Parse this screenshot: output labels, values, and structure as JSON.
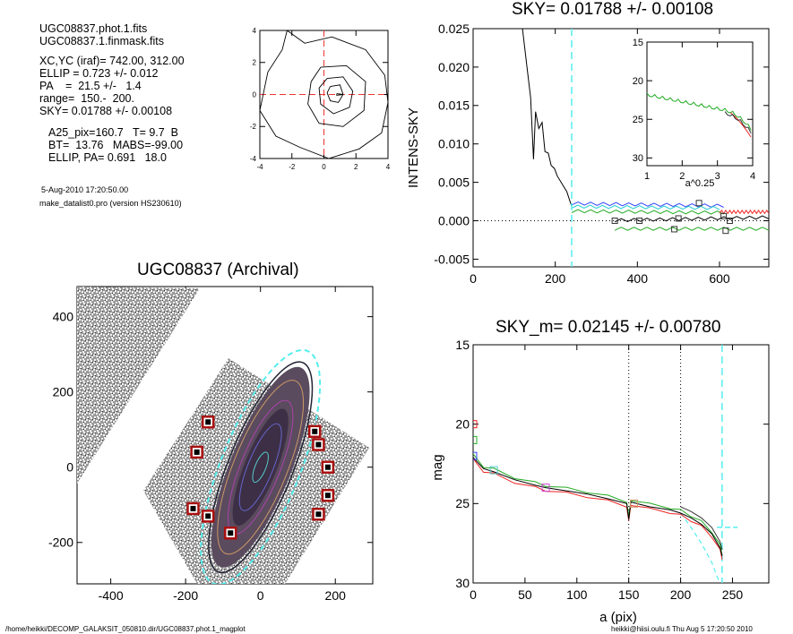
{
  "header": {
    "lines": [
      "UGC08837.phot.1.fits",
      "UGC08837.1.finmask.fits",
      "XC,YC (iraf)=   742.00, 312.00",
      "ELLIP = 0.723 +/- 0.012",
      "PA    =  21.5 +/-   1.4",
      "range=  150.-  200.",
      "SKY= 0.01788 +/- 0.00108",
      "A25_pix=160.7   T= 9.7  B",
      "BT=  13.76   MABS=-99.00",
      "ELLIP, PA= 0.691   18.0",
      "5-Aug-2010 17:20:50.00",
      "make_datalist0.pro (version HS230610)"
    ]
  },
  "footer": {
    "left": "/home/heikki/DECOMP_GALAKSIT_050810.dir/UGC08837.phot.1_magplot",
    "right": "heikki@hiisi.oulu.fi  Thu Aug  5 17:20:50 2010"
  },
  "chart_data": [
    {
      "id": "contour",
      "type": "contour",
      "xlim": [
        -4,
        4
      ],
      "ylim": [
        -4,
        4
      ],
      "xticks": [
        "-4",
        "-2",
        "0",
        "2",
        "4"
      ],
      "yticks": [
        "4",
        "2",
        "0",
        "-2",
        "-4"
      ]
    },
    {
      "id": "sky",
      "type": "line",
      "title": "SKY= 0.01788 +/- 0.00108",
      "ylabel": "INTENS-SKY",
      "xlim": [
        0,
        720
      ],
      "ylim": [
        -0.006,
        0.025
      ],
      "xticks": [
        "0",
        "200",
        "400",
        "600"
      ],
      "yticks": [
        "0.025",
        "0.020",
        "0.015",
        "0.010",
        "0.005",
        "0.000",
        "-0.005"
      ],
      "marker_x": 240,
      "profile": [
        [
          118,
          0.026
        ],
        [
          130,
          0.0205
        ],
        [
          140,
          0.016
        ],
        [
          147,
          0.008
        ],
        [
          152,
          0.0142
        ],
        [
          160,
          0.012
        ],
        [
          168,
          0.0128
        ],
        [
          175,
          0.009
        ],
        [
          183,
          0.0088
        ],
        [
          190,
          0.0072
        ],
        [
          198,
          0.0068
        ],
        [
          205,
          0.0058
        ],
        [
          212,
          0.0052
        ],
        [
          220,
          0.0045
        ],
        [
          228,
          0.0038
        ],
        [
          236,
          0.0025
        ],
        [
          240,
          0.0019
        ]
      ],
      "segments": [
        {
          "name": "blue",
          "color": "#3344ff",
          "x": [
            240,
            610
          ],
          "y": [
            0.0022,
            0.0019
          ]
        },
        {
          "name": "cyan",
          "color": "#22cccc",
          "x": [
            240,
            600
          ],
          "y": [
            0.0018,
            0.0016
          ]
        },
        {
          "name": "green",
          "color": "#22aa22",
          "x": [
            240,
            610
          ],
          "y": [
            0.0012,
            0.001
          ]
        },
        {
          "name": "red",
          "color": "#ee2222",
          "x": [
            600,
            720
          ],
          "y": [
            0.0011,
            0.0011
          ]
        },
        {
          "name": "black",
          "color": "#000000",
          "x": [
            345,
            720
          ],
          "y": [
            0.0,
            0.0004
          ]
        },
        {
          "name": "green2",
          "color": "#22aa22",
          "x": [
            345,
            720
          ],
          "y": [
            -0.0011,
            -0.0011
          ]
        }
      ],
      "squares": [
        [
          345,
          0.0
        ],
        [
          405,
          0.0
        ],
        [
          500,
          0.0003
        ],
        [
          610,
          0.0006
        ],
        [
          625,
          0.0
        ],
        [
          490,
          -0.0011
        ],
        [
          615,
          -0.0013
        ],
        [
          550,
          0.0023
        ]
      ],
      "inset": {
        "xlabel": "a^0.25",
        "xlim": [
          1,
          4
        ],
        "ylim": [
          31,
          15
        ],
        "xticks": [
          "1",
          "2",
          "3",
          "4"
        ],
        "yticks": [
          "15",
          "20",
          "25",
          "30"
        ]
      }
    },
    {
      "id": "image",
      "type": "image",
      "title": "UGC08837 (Archival)",
      "xlim": [
        -490,
        300
      ],
      "ylim": [
        -310,
        480
      ],
      "xticks": [
        "-400",
        "-200",
        "0",
        "200"
      ],
      "yticks": [
        "400",
        "200",
        "0",
        "-200"
      ]
    },
    {
      "id": "mag",
      "type": "line",
      "title": "SKY_m=  0.02145 +/- 0.00780",
      "xlabel": "a (pix)",
      "ylabel": "mag",
      "xlim": [
        0,
        285
      ],
      "ylim": [
        30,
        15
      ],
      "xticks": [
        "0",
        "50",
        "100",
        "150",
        "200",
        "250"
      ],
      "yticks": [
        "15",
        "20",
        "25",
        "30"
      ],
      "vlines": [
        150,
        200
      ],
      "marker_x": 240,
      "profile": [
        [
          0,
          22.1
        ],
        [
          10,
          22.8
        ],
        [
          20,
          23.0
        ],
        [
          40,
          23.5
        ],
        [
          60,
          23.85
        ],
        [
          70,
          24.0
        ],
        [
          90,
          24.2
        ],
        [
          110,
          24.4
        ],
        [
          130,
          24.7
        ],
        [
          148,
          25.0
        ],
        [
          150,
          26.0
        ],
        [
          152,
          24.9
        ],
        [
          170,
          25.2
        ],
        [
          190,
          25.4
        ],
        [
          200,
          25.6
        ],
        [
          210,
          25.9
        ],
        [
          220,
          26.3
        ],
        [
          230,
          26.9
        ],
        [
          238,
          27.8
        ],
        [
          240,
          28.3
        ]
      ],
      "squares": [
        [
          0,
          20.0
        ],
        [
          0,
          21.0
        ],
        [
          0,
          22.0
        ],
        [
          20,
          22.9
        ],
        [
          70,
          24.0
        ],
        [
          155,
          25.0
        ]
      ]
    }
  ]
}
